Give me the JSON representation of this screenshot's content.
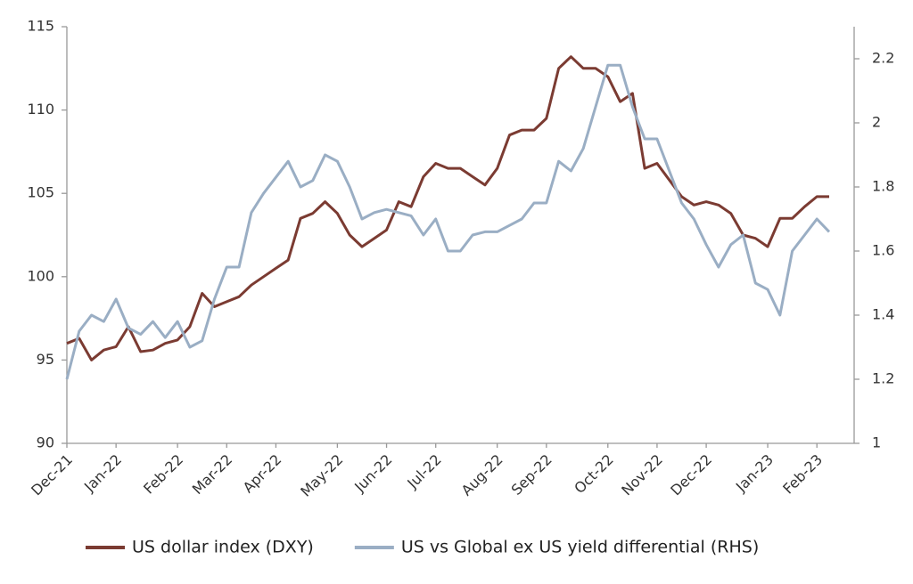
{
  "chart_data": {
    "type": "line",
    "categories": [
      "Dec-21",
      null,
      null,
      null,
      "Jan-22",
      null,
      null,
      null,
      null,
      "Feb-22",
      null,
      null,
      null,
      "Mar-22",
      null,
      null,
      null,
      "Apr-22",
      null,
      null,
      null,
      null,
      "May-22",
      null,
      null,
      null,
      "Jun-22",
      null,
      null,
      null,
      "Jul-22",
      null,
      null,
      null,
      null,
      "Aug-22",
      null,
      null,
      null,
      "Sep-22",
      null,
      null,
      null,
      null,
      "Oct-22",
      null,
      null,
      null,
      "Nov-22",
      null,
      null,
      null,
      "Dec-22",
      null,
      null,
      null,
      null,
      "Jan-23",
      null,
      null,
      null,
      "Feb-23",
      null
    ],
    "series": [
      {
        "name": "US dollar index (DXY)",
        "color": "#7b3b32",
        "axis": "y",
        "values": [
          96.0,
          96.3,
          95.0,
          95.6,
          95.8,
          97.0,
          95.5,
          95.6,
          96.0,
          96.2,
          97.0,
          99.0,
          98.2,
          98.5,
          98.8,
          99.5,
          100.0,
          100.5,
          101.0,
          103.5,
          103.8,
          104.5,
          103.8,
          102.5,
          101.8,
          102.3,
          102.8,
          104.5,
          104.2,
          106.0,
          106.8,
          106.5,
          106.5,
          106.0,
          105.5,
          106.5,
          108.5,
          108.8,
          108.8,
          109.5,
          112.5,
          113.2,
          112.5,
          112.5,
          112.0,
          110.5,
          111.0,
          106.5,
          106.8,
          105.8,
          104.8,
          104.3,
          104.5,
          104.3,
          103.8,
          102.5,
          102.3,
          101.8,
          103.5,
          103.5,
          104.2,
          104.8,
          104.8
        ]
      },
      {
        "name": "US vs Global ex US yield differential (RHS)",
        "color": "#9aaec4",
        "axis": "y2",
        "values": [
          1.2,
          1.35,
          1.4,
          1.38,
          1.45,
          1.36,
          1.34,
          1.38,
          1.33,
          1.38,
          1.3,
          1.32,
          1.45,
          1.55,
          1.55,
          1.72,
          1.78,
          1.83,
          1.88,
          1.8,
          1.82,
          1.9,
          1.88,
          1.8,
          1.7,
          1.72,
          1.73,
          1.72,
          1.71,
          1.65,
          1.7,
          1.6,
          1.6,
          1.65,
          1.66,
          1.66,
          1.68,
          1.7,
          1.75,
          1.75,
          1.88,
          1.85,
          1.92,
          2.05,
          2.18,
          2.18,
          2.05,
          1.95,
          1.95,
          1.85,
          1.75,
          1.7,
          1.62,
          1.55,
          1.62,
          1.65,
          1.5,
          1.48,
          1.4,
          1.6,
          1.65,
          1.7,
          1.66
        ]
      }
    ],
    "ylim": [
      90,
      115
    ],
    "yticks": [
      90,
      95,
      100,
      105,
      110,
      115
    ],
    "y2lim": [
      1,
      2.3
    ],
    "y2ticks": [
      1,
      1.2,
      1.4,
      1.6,
      1.8,
      2,
      2.2
    ],
    "grid": false,
    "legend": "bottom"
  }
}
